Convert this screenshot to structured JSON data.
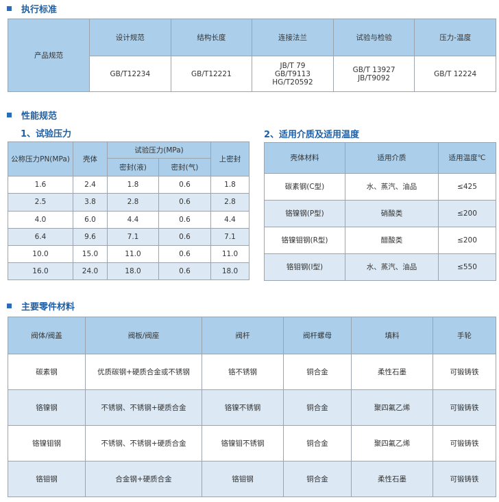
{
  "colors": {
    "header": "#abcfeb",
    "alt_row": "#dce9f5",
    "title": "#1f5fa6"
  },
  "section1": {
    "title": "执行标准",
    "row_label": "产品规范",
    "headers": [
      "设计规范",
      "结构长度",
      "连接法兰",
      "试验与检验",
      "压力-温度"
    ],
    "values": [
      [
        "GB/T12234"
      ],
      [
        "GB/T12221"
      ],
      [
        "JB/T 79",
        "GB/T9113",
        "HG/T20592"
      ],
      [
        "GB/T 13927",
        "JB/T9092"
      ],
      [
        "GB/T 12224"
      ]
    ]
  },
  "section2": {
    "title": "性能规范",
    "pressure": {
      "title": "1、试验压力",
      "h_pn": "公称压力PN(MPa)",
      "h_shell": "壳体",
      "h_test": "试验压力(MPa)",
      "h_liquid": "密封(液)",
      "h_gas": "密封(气)",
      "h_upper": "上密封",
      "rows": [
        [
          "1.6",
          "2.4",
          "1.8",
          "0.6",
          "1.8"
        ],
        [
          "2.5",
          "3.8",
          "2.8",
          "0.6",
          "2.8"
        ],
        [
          "4.0",
          "6.0",
          "4.4",
          "0.6",
          "4.4"
        ],
        [
          "6.4",
          "9.6",
          "7.1",
          "0.6",
          "7.1"
        ],
        [
          "10.0",
          "15.0",
          "11.0",
          "0.6",
          "11.0"
        ],
        [
          "16.0",
          "24.0",
          "18.0",
          "0.6",
          "18.0"
        ]
      ]
    },
    "media": {
      "title": "2、适用介质及适用温度",
      "headers": [
        "壳体材料",
        "适用介质",
        "适用温度℃"
      ],
      "rows": [
        [
          "碳素钢(C型)",
          "水、蒸汽、油品",
          "≤425"
        ],
        [
          "铬镍钢(P型)",
          "硝酸类",
          "≤200"
        ],
        [
          "铬镍钼钢(R型)",
          "醋酸类",
          "≤200"
        ],
        [
          "铬钼钢(I型)",
          "水、蒸汽、油品",
          "≤550"
        ]
      ]
    }
  },
  "section3": {
    "title": "主要零件材料",
    "headers": [
      "阀体/阀盖",
      "阀板/阀座",
      "阀杆",
      "阀杆螺母",
      "填料",
      "手轮"
    ],
    "rows": [
      [
        "碳素钢",
        "优质碳钢+硬质合金或不锈钢",
        "铬不锈钢",
        "铜合金",
        "柔性石墨",
        "可锻铸铁"
      ],
      [
        "铬镍钢",
        "不锈钢、不锈钢+硬质合金",
        "铬镍不锈钢",
        "铜合金",
        "聚四氟乙烯",
        "可锻铸铁"
      ],
      [
        "铬镍钼钢",
        "不锈钢、不锈钢+硬质合金",
        "铬镍钼不锈钢",
        "铜合金",
        "聚四氟乙烯",
        "可锻铸铁"
      ],
      [
        "铬钼钢",
        "合金钢+硬质合金",
        "铬钼钢",
        "铜合金",
        "柔性石墨",
        "可锻铸铁"
      ]
    ]
  }
}
